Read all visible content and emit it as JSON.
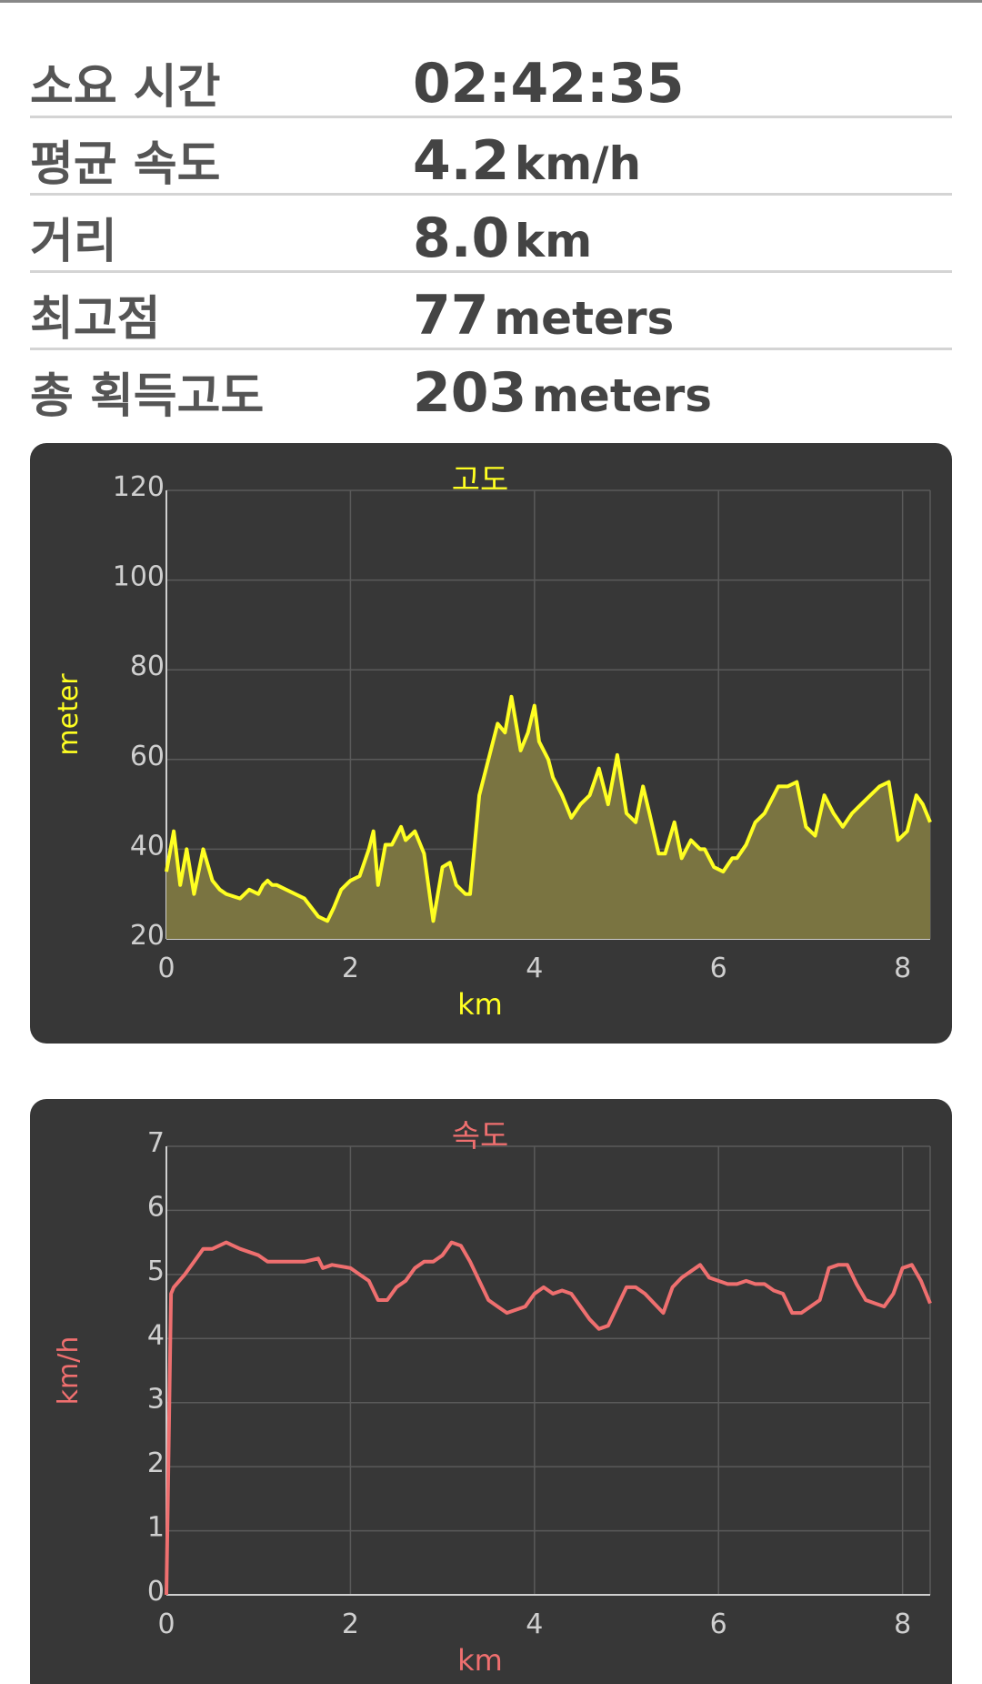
{
  "stats": [
    {
      "label": "소요 시간",
      "num": "02:42:35",
      "unit": ""
    },
    {
      "label": "평균 속도",
      "num": "4.2",
      "unit": "km/h"
    },
    {
      "label": "거리",
      "num": "8.0",
      "unit": "km"
    },
    {
      "label": "최고점",
      "num": "77",
      "unit": "meters"
    },
    {
      "label": "총 획득고도",
      "num": "203",
      "unit": "meters"
    }
  ],
  "colors": {
    "elevation": "#ffff22",
    "elevation_fill": "#7a7441",
    "speed": "#ef6f6f",
    "card_bg": "#373737",
    "grid": "#5a5a5a",
    "tick": "#cfcfcf"
  },
  "chart_data": [
    {
      "type": "area",
      "title": "고도",
      "xlabel": "km",
      "ylabel": "meter",
      "xlim": [
        0,
        8.3
      ],
      "ylim": [
        20,
        120
      ],
      "xticks": [
        "0",
        "2",
        "4",
        "6",
        "8"
      ],
      "yticks": [
        "20",
        "40",
        "60",
        "80",
        "100",
        "120"
      ],
      "grid": true,
      "series": [
        {
          "x": [
            0,
            0.08,
            0.15,
            0.22,
            0.3,
            0.4,
            0.5,
            0.58,
            0.65,
            0.8,
            0.9,
            1.0,
            1.05,
            1.1,
            1.15,
            1.2,
            1.3,
            1.4,
            1.5,
            1.65,
            1.75,
            1.82,
            1.9,
            2.0,
            2.1,
            2.2,
            2.25,
            2.3,
            2.38,
            2.45,
            2.55,
            2.6,
            2.7,
            2.8,
            2.9,
            3.0,
            3.08,
            3.15,
            3.25,
            3.3,
            3.4,
            3.5,
            3.6,
            3.68,
            3.75,
            3.85,
            3.93,
            4.0,
            4.05,
            4.15,
            4.2,
            4.3,
            4.4,
            4.5,
            4.6,
            4.7,
            4.8,
            4.9,
            5.0,
            5.1,
            5.18,
            5.25,
            5.35,
            5.42,
            5.52,
            5.6,
            5.7,
            5.8,
            5.85,
            5.95,
            6.05,
            6.15,
            6.2,
            6.3,
            6.4,
            6.5,
            6.55,
            6.65,
            6.75,
            6.85,
            6.95,
            7.05,
            7.15,
            7.25,
            7.35,
            7.45,
            7.55,
            7.65,
            7.75,
            7.85,
            7.95,
            8.05,
            8.15,
            8.22,
            8.3
          ],
          "y": [
            35,
            44,
            32,
            40,
            30,
            40,
            33,
            31,
            30,
            29,
            31,
            30,
            32,
            33,
            32,
            32,
            31,
            30,
            29,
            25,
            24,
            27,
            31,
            33,
            34,
            40,
            44,
            32,
            41,
            41,
            45,
            42,
            44,
            39,
            24,
            36,
            37,
            32,
            30,
            30,
            52,
            60,
            68,
            66,
            74,
            62,
            66,
            72,
            64,
            60,
            56,
            52,
            47,
            50,
            52,
            58,
            50,
            61,
            48,
            46,
            54,
            48,
            39,
            39,
            46,
            38,
            42,
            40,
            40,
            36,
            35,
            38,
            38,
            41,
            46,
            48,
            50,
            54,
            54,
            55,
            45,
            43,
            52,
            48,
            45,
            48,
            50,
            52,
            54,
            55,
            42,
            44,
            52,
            50,
            46
          ]
        }
      ]
    },
    {
      "type": "line",
      "title": "속도",
      "xlabel": "km",
      "ylabel": "km/h",
      "xlim": [
        0,
        8.3
      ],
      "ylim": [
        0,
        7
      ],
      "xticks": [
        "0",
        "2",
        "4",
        "6",
        "8"
      ],
      "yticks": [
        "0",
        "1",
        "2",
        "3",
        "4",
        "5",
        "6",
        "7"
      ],
      "grid": true,
      "series": [
        {
          "x": [
            0,
            0.05,
            0.08,
            0.2,
            0.3,
            0.4,
            0.5,
            0.65,
            0.8,
            1.0,
            1.1,
            1.3,
            1.5,
            1.65,
            1.7,
            1.8,
            2.0,
            2.1,
            2.2,
            2.3,
            2.4,
            2.5,
            2.6,
            2.7,
            2.8,
            2.9,
            3.0,
            3.1,
            3.2,
            3.3,
            3.4,
            3.5,
            3.6,
            3.7,
            3.8,
            3.9,
            4.0,
            4.1,
            4.2,
            4.3,
            4.4,
            4.5,
            4.6,
            4.7,
            4.8,
            4.9,
            5.0,
            5.1,
            5.2,
            5.3,
            5.4,
            5.5,
            5.6,
            5.7,
            5.8,
            5.9,
            6.0,
            6.1,
            6.2,
            6.3,
            6.4,
            6.5,
            6.6,
            6.7,
            6.8,
            6.9,
            7.0,
            7.1,
            7.2,
            7.3,
            7.4,
            7.5,
            7.6,
            7.7,
            7.8,
            7.9,
            8.0,
            8.1,
            8.2,
            8.3
          ],
          "y": [
            0,
            4.7,
            4.8,
            5.0,
            5.2,
            5.4,
            5.4,
            5.5,
            5.4,
            5.3,
            5.2,
            5.2,
            5.2,
            5.25,
            5.1,
            5.15,
            5.1,
            5.0,
            4.9,
            4.6,
            4.6,
            4.8,
            4.9,
            5.1,
            5.2,
            5.2,
            5.3,
            5.5,
            5.45,
            5.2,
            4.9,
            4.6,
            4.5,
            4.4,
            4.45,
            4.5,
            4.7,
            4.8,
            4.7,
            4.75,
            4.7,
            4.5,
            4.3,
            4.15,
            4.2,
            4.5,
            4.8,
            4.8,
            4.7,
            4.55,
            4.4,
            4.8,
            4.95,
            5.05,
            5.15,
            4.95,
            4.9,
            4.85,
            4.85,
            4.9,
            4.85,
            4.85,
            4.75,
            4.7,
            4.4,
            4.4,
            4.5,
            4.6,
            5.1,
            5.15,
            5.15,
            4.85,
            4.6,
            4.55,
            4.5,
            4.7,
            5.1,
            5.15,
            4.9,
            4.55
          ]
        }
      ]
    }
  ]
}
